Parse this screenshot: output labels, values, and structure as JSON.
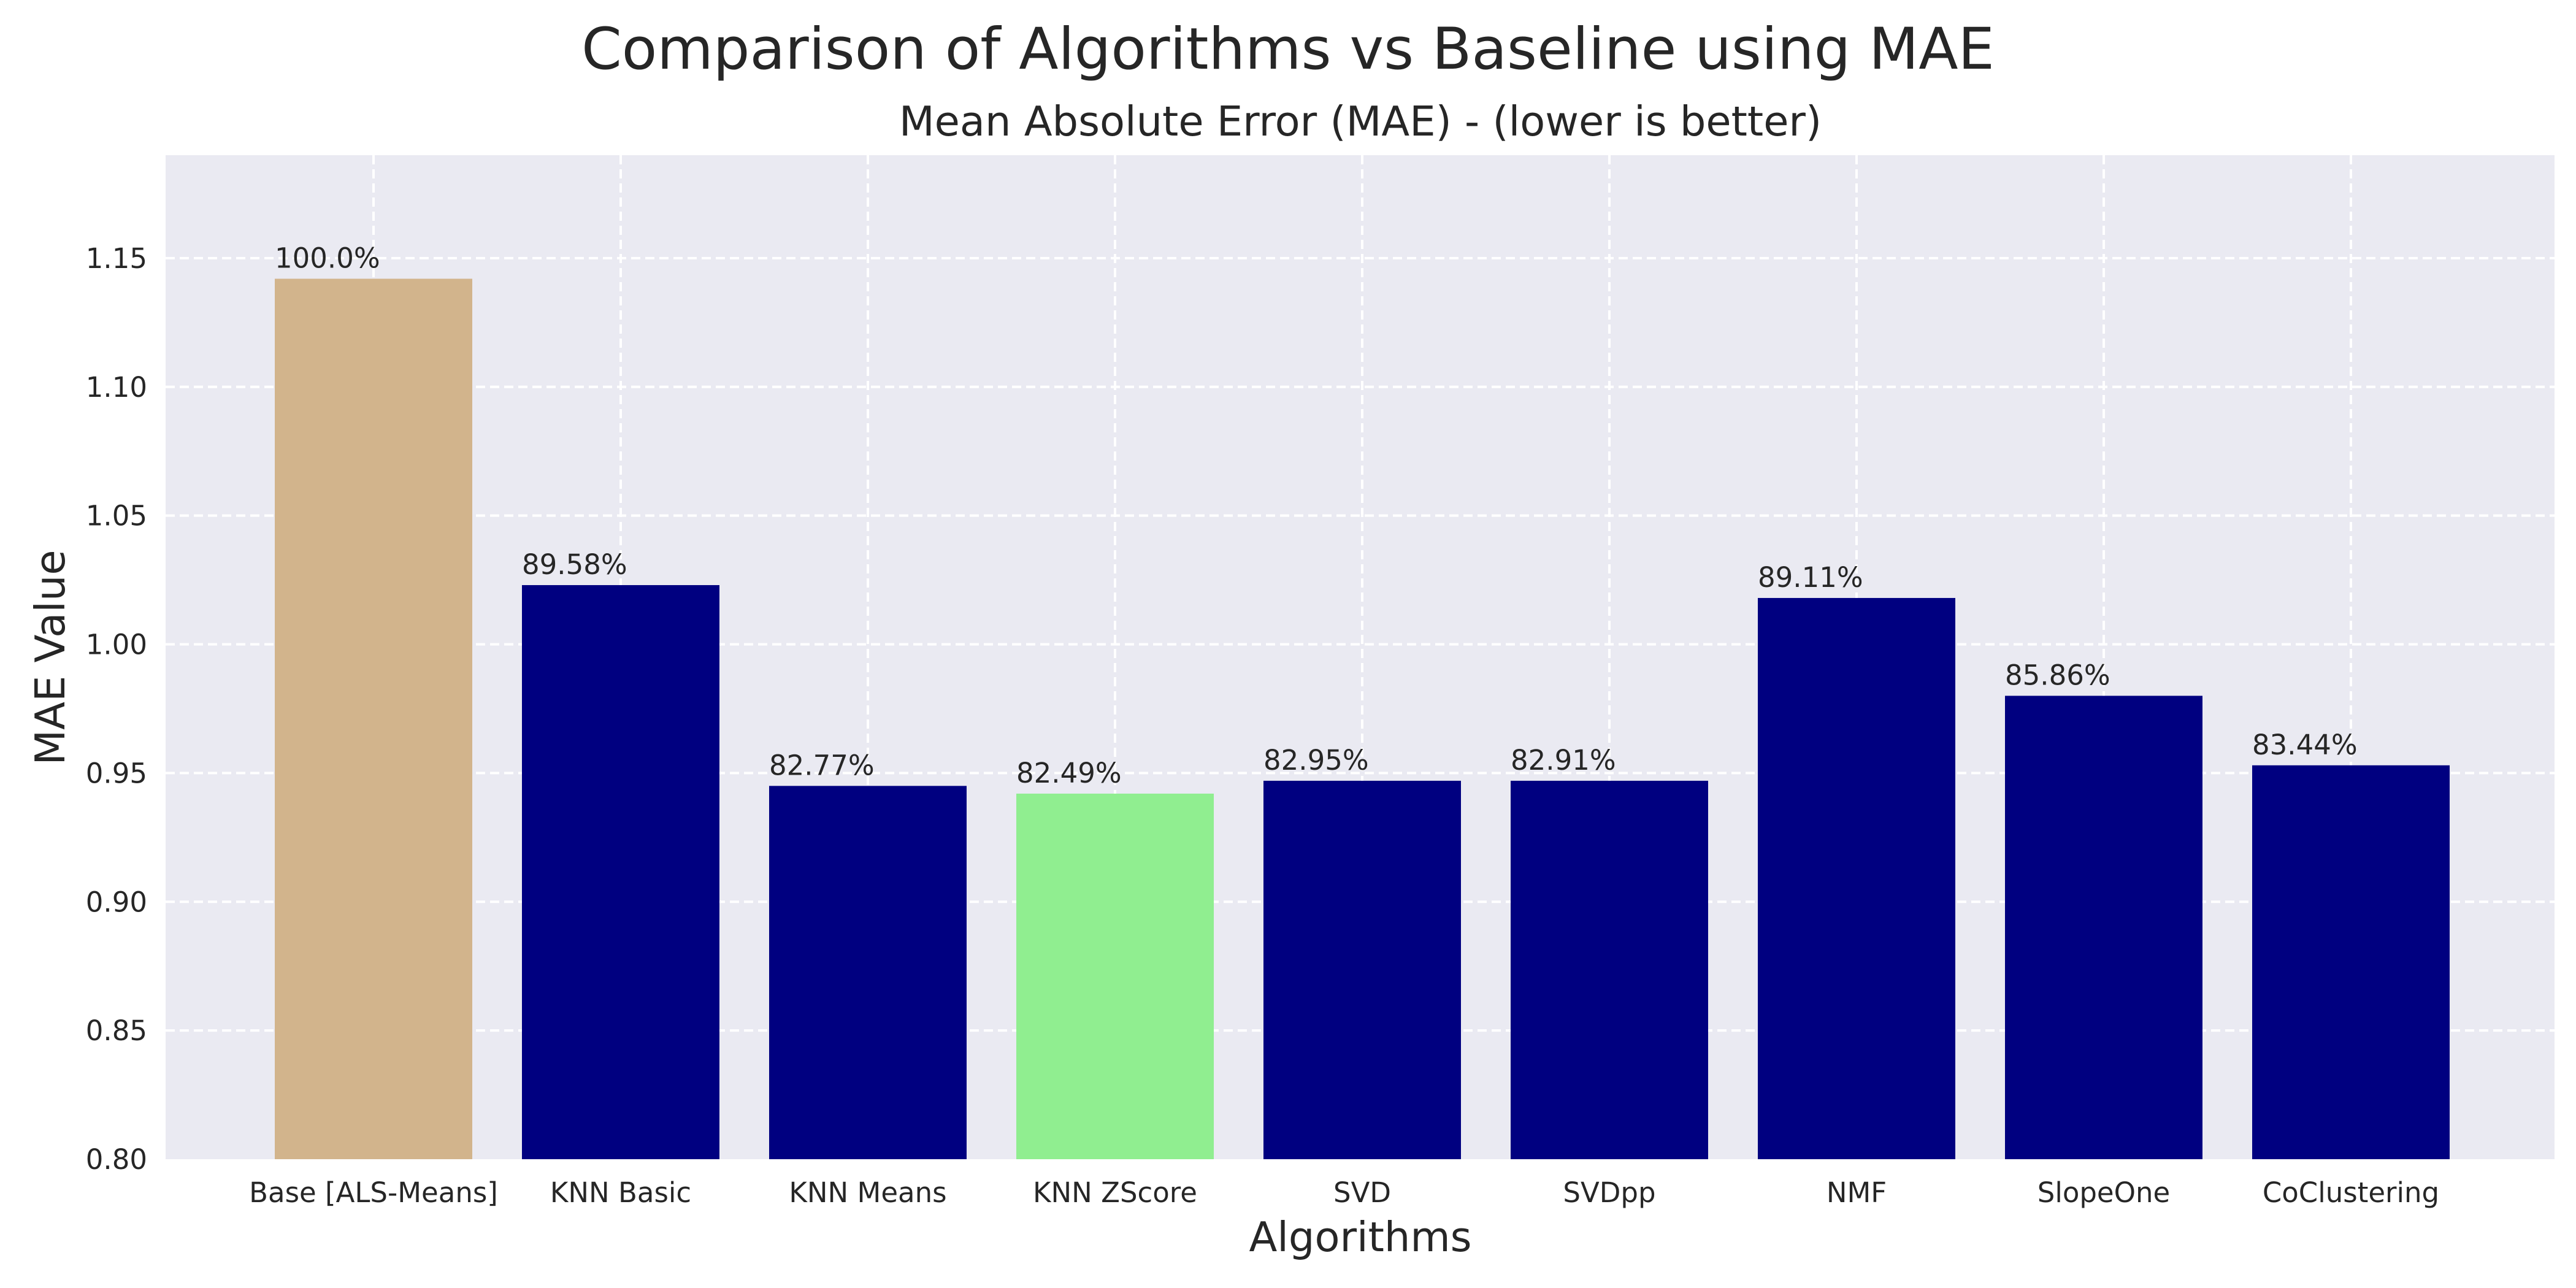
{
  "chart_data": {
    "type": "bar",
    "title": "Comparison of Algorithms vs Baseline using MAE",
    "subtitle": "Mean Absolute Error (MAE) - (lower is better)",
    "xlabel": "Algorithms",
    "ylabel": "MAE Value",
    "ylim": [
      0.8,
      1.19
    ],
    "yticks": [
      "0.80",
      "0.85",
      "0.90",
      "0.95",
      "1.00",
      "1.05",
      "1.10",
      "1.15"
    ],
    "grid": true,
    "categories": [
      "Base [ALS-Means]",
      "KNN Basic",
      "KNN Means",
      "KNN ZScore",
      "SVD",
      "SVDpp",
      "NMF",
      "SlopeOne",
      "CoClustering"
    ],
    "values": [
      1.142,
      1.023,
      0.945,
      0.942,
      0.947,
      0.947,
      1.018,
      0.98,
      0.953
    ],
    "bar_labels": [
      "100.0%",
      "89.58%",
      "82.77%",
      "82.49%",
      "82.95%",
      "82.91%",
      "89.11%",
      "85.86%",
      "83.44%"
    ],
    "colors": [
      "#d2b48c",
      "#000080",
      "#000080",
      "#000080",
      "#000080",
      "#000080",
      "#000080",
      "#000080",
      "#000080"
    ],
    "highlight_colors": {
      "baseline": "#d2b48c",
      "best": "#90ee90",
      "others": "#000080"
    },
    "bar_colors": [
      "#d2b48c",
      "#000080",
      "#000080",
      "#90ee90",
      "#000080",
      "#000080",
      "#000080",
      "#000080",
      "#000080"
    ],
    "plot_background": "#eaeaf2"
  }
}
